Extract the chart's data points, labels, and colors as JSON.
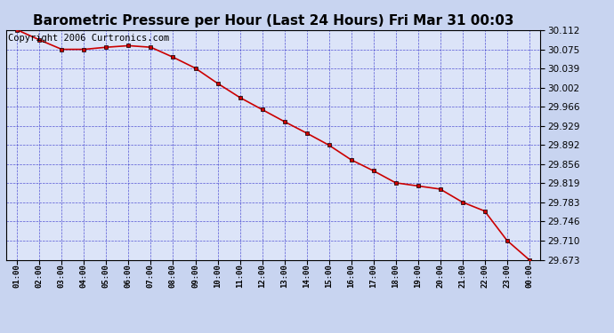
{
  "title": "Barometric Pressure per Hour (Last 24 Hours) Fri Mar 31 00:03",
  "copyright": "Copyright 2006 Curtronics.com",
  "x_labels": [
    "01:00",
    "02:00",
    "03:00",
    "04:00",
    "05:00",
    "06:00",
    "07:00",
    "08:00",
    "09:00",
    "10:00",
    "11:00",
    "12:00",
    "13:00",
    "14:00",
    "15:00",
    "16:00",
    "17:00",
    "18:00",
    "19:00",
    "20:00",
    "21:00",
    "22:00",
    "23:00",
    "00:00"
  ],
  "y_values": [
    30.112,
    30.093,
    30.075,
    30.075,
    30.079,
    30.082,
    30.079,
    30.06,
    30.039,
    30.01,
    29.983,
    29.96,
    29.937,
    29.915,
    29.892,
    29.864,
    29.843,
    29.82,
    29.814,
    29.808,
    29.783,
    29.766,
    29.71,
    29.673
  ],
  "y_ticks": [
    29.673,
    29.71,
    29.746,
    29.783,
    29.819,
    29.856,
    29.892,
    29.929,
    29.966,
    30.002,
    30.039,
    30.075,
    30.112
  ],
  "y_min": 29.673,
  "y_max": 30.112,
  "line_color": "#cc0000",
  "marker_color": "#000000",
  "bg_color": "#c8d4f0",
  "plot_bg_color": "#dce4f8",
  "grid_color": "#3333cc",
  "title_fontsize": 11,
  "copyright_fontsize": 7.5
}
